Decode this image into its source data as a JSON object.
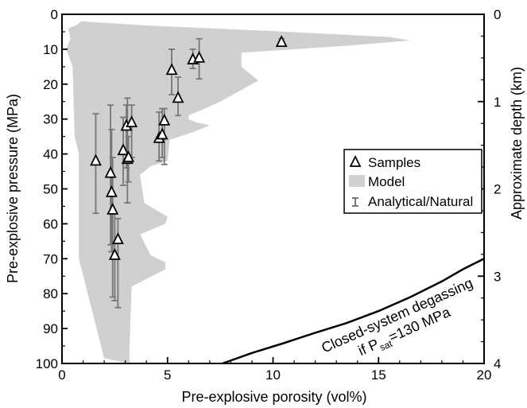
{
  "chart_data": {
    "type": "scatter",
    "xlabel": "Pre-explosive porosity (vol%)",
    "ylabel": "Pre-explosive pressure (MPa)",
    "y2label": "Approximate depth (km)",
    "xlim": [
      0,
      20
    ],
    "ylim": [
      0,
      100
    ],
    "y2lim": [
      0,
      4
    ],
    "y_inverted": true,
    "x_ticks": [
      "0",
      "5",
      "10",
      "15",
      "20"
    ],
    "y_ticks": [
      "0",
      "10",
      "20",
      "30",
      "40",
      "50",
      "60",
      "70",
      "80",
      "90",
      "100"
    ],
    "y2_ticks": [
      "0",
      "1",
      "2",
      "3",
      "4"
    ],
    "legend": {
      "placement": "right",
      "entries": [
        {
          "label": "Samples",
          "symbol": "triangle"
        },
        {
          "label": "Model",
          "symbol": "gray-fill"
        },
        {
          "label": "Analytical/Natural",
          "symbol": "errorbar"
        }
      ]
    },
    "series": [
      {
        "name": "Samples",
        "points": [
          {
            "x": 1.6,
            "y": 42,
            "err_low": 28.5,
            "err_high": 57
          },
          {
            "x": 2.3,
            "y": 45.5,
            "err_low": 26,
            "err_high": 66
          },
          {
            "x": 2.35,
            "y": 51,
            "err_low": 33,
            "err_high": 68
          },
          {
            "x": 2.4,
            "y": 56,
            "err_low": 41,
            "err_high": 81
          },
          {
            "x": 2.5,
            "y": 69,
            "err_low": 57,
            "err_high": 82
          },
          {
            "x": 2.65,
            "y": 64.5,
            "err_low": 58.5,
            "err_high": 84
          },
          {
            "x": 2.9,
            "y": 39,
            "err_low": 29.5,
            "err_high": 49
          },
          {
            "x": 3.05,
            "y": 32,
            "err_low": 26,
            "err_high": 44
          },
          {
            "x": 3.1,
            "y": 41.5,
            "err_low": 24,
            "err_high": 54
          },
          {
            "x": 3.15,
            "y": 41,
            "err_low": 35,
            "err_high": 48
          },
          {
            "x": 3.3,
            "y": 31,
            "err_low": 26,
            "err_high": 41
          },
          {
            "x": 4.6,
            "y": 35.5,
            "err_low": 28,
            "err_high": 42
          },
          {
            "x": 4.75,
            "y": 34.5,
            "err_low": 27,
            "err_high": 41
          },
          {
            "x": 4.85,
            "y": 30.5,
            "err_low": 27,
            "err_high": 43
          },
          {
            "x": 5.2,
            "y": 16,
            "err_low": 10,
            "err_high": 23
          },
          {
            "x": 5.5,
            "y": 24,
            "err_low": 18,
            "err_high": 29
          },
          {
            "x": 6.2,
            "y": 13,
            "err_low": 10,
            "err_high": 15.5
          },
          {
            "x": 6.5,
            "y": 12.5,
            "err_low": 7,
            "err_high": 18.5
          },
          {
            "x": 10.4,
            "y": 8,
            "err_low": 7,
            "err_high": 9
          }
        ]
      }
    ],
    "model_envelope": [
      [
        0.9,
        2
      ],
      [
        4.0,
        3.2
      ],
      [
        10.0,
        4.8
      ],
      [
        15.5,
        6.5
      ],
      [
        16.5,
        7.5
      ],
      [
        13.5,
        9.0
      ],
      [
        8.5,
        11.0
      ],
      [
        8.5,
        15.0
      ],
      [
        9.3,
        19.0
      ],
      [
        7.5,
        25.0
      ],
      [
        6.0,
        29.0
      ],
      [
        6.0,
        30.0
      ],
      [
        6.4,
        31.0
      ],
      [
        7.0,
        31.8
      ],
      [
        6.3,
        33.5
      ],
      [
        5.1,
        36.0
      ],
      [
        5.0,
        42.0
      ],
      [
        4.2,
        43.5
      ],
      [
        3.7,
        46.0
      ],
      [
        3.9,
        54.0
      ],
      [
        5.0,
        58.0
      ],
      [
        4.9,
        60.0
      ],
      [
        3.7,
        63.0
      ],
      [
        4.2,
        69.0
      ],
      [
        4.9,
        71.0
      ],
      [
        4.9,
        73.0
      ],
      [
        3.3,
        78.0
      ],
      [
        3.2,
        95.0
      ],
      [
        3.2,
        100.0
      ],
      [
        2.0,
        98.5
      ],
      [
        0.8,
        70.0
      ],
      [
        0.8,
        40.0
      ],
      [
        0.6,
        35.0
      ],
      [
        0.5,
        15.0
      ],
      [
        0.2,
        10.0
      ],
      [
        0.4,
        7.0
      ],
      [
        0.3,
        4.0
      ],
      [
        0.7,
        3.0
      ]
    ],
    "degassing_curve": {
      "label_line1": "Closed-system degassing",
      "label_line2_prefix": "if P",
      "label_line2_sub": "sat",
      "label_line2_suffix": "=130 MPa",
      "points": [
        [
          7.6,
          100
        ],
        [
          9.0,
          97
        ],
        [
          10.5,
          94.2
        ],
        [
          12.0,
          91.2
        ],
        [
          13.5,
          88.4
        ],
        [
          15.0,
          85.0
        ],
        [
          16.5,
          81.0
        ],
        [
          18.0,
          76.5
        ],
        [
          19.0,
          73.0
        ],
        [
          20.0,
          70.0
        ]
      ]
    }
  }
}
